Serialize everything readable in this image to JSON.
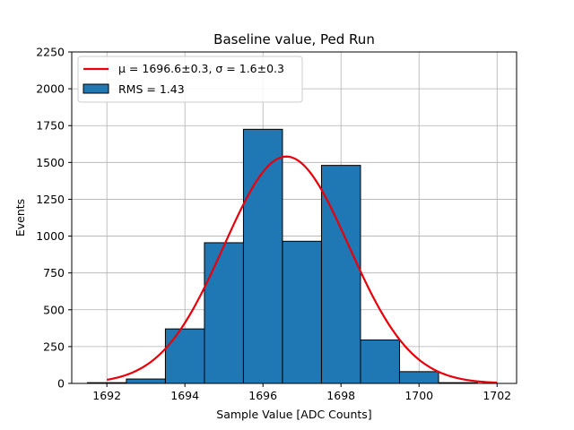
{
  "chart_data": {
    "type": "bar",
    "title": "Baseline value, Ped Run",
    "xlabel": "Sample Value [ADC Counts]",
    "ylabel": "Events",
    "xlim": [
      1691.1,
      1702.5
    ],
    "ylim": [
      0,
      2250
    ],
    "xticks": [
      1692,
      1694,
      1696,
      1698,
      1700,
      1702
    ],
    "xtick_labels": [
      "1692",
      "1694",
      "1696",
      "1698",
      "1700",
      "1702"
    ],
    "yticks": [
      0,
      250,
      500,
      750,
      1000,
      1250,
      1500,
      1750,
      2000,
      2250
    ],
    "ytick_labels": [
      "0",
      "250",
      "500",
      "750",
      "1000",
      "1250",
      "1500",
      "1750",
      "2000",
      "2250"
    ],
    "grid": true,
    "legend_position": "top-left",
    "histogram": {
      "name": "RMS = 1.43",
      "color": "#1f77b4",
      "edge_color": "#000000",
      "bin_edges": [
        1691.5,
        1692.5,
        1693.5,
        1694.5,
        1695.5,
        1696.5,
        1697.5,
        1698.5,
        1699.5,
        1700.5,
        1701.5,
        1702.5
      ],
      "counts": [
        5,
        30,
        370,
        955,
        1725,
        965,
        1480,
        295,
        80,
        5,
        0
      ]
    },
    "fit": {
      "name_prefix": "μ = 1696.6±0.3, σ = 1.6±0.3",
      "type": "gaussian",
      "mu": 1696.6,
      "sigma": 1.6,
      "amplitude": 1540,
      "x_range": [
        1692,
        1702
      ],
      "color": "#e8000b"
    }
  }
}
